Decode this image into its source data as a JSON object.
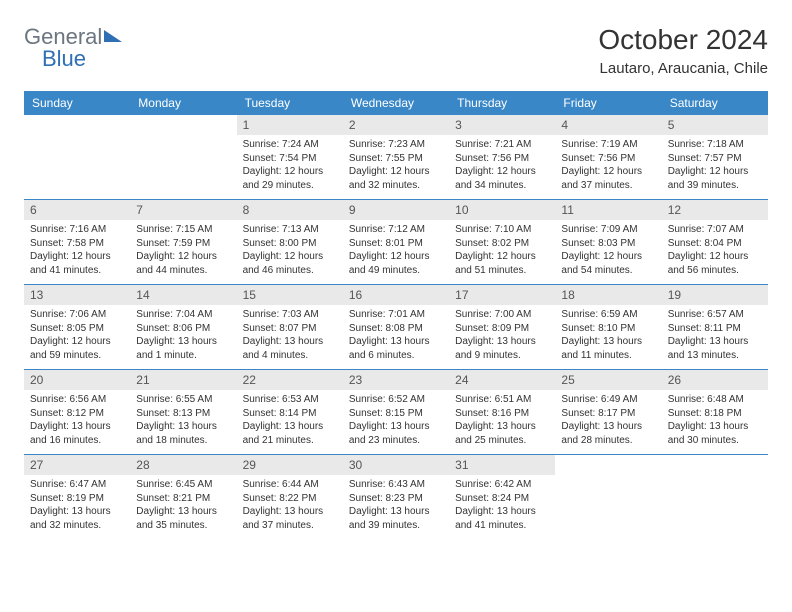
{
  "logo": {
    "part1": "General",
    "part2": "Blue"
  },
  "title": "October 2024",
  "location": "Lautaro, Araucania, Chile",
  "colors": {
    "headerBar": "#3a87c8",
    "dayNumBg": "#e9e9e9",
    "logoGray": "#6c7680",
    "logoBlue": "#2f6fb4"
  },
  "dayNames": [
    "Sunday",
    "Monday",
    "Tuesday",
    "Wednesday",
    "Thursday",
    "Friday",
    "Saturday"
  ],
  "startWeekday": 2,
  "daysInMonth": 31,
  "days": {
    "1": {
      "sunrise": "7:24 AM",
      "sunset": "7:54 PM",
      "daylight": "12 hours and 29 minutes."
    },
    "2": {
      "sunrise": "7:23 AM",
      "sunset": "7:55 PM",
      "daylight": "12 hours and 32 minutes."
    },
    "3": {
      "sunrise": "7:21 AM",
      "sunset": "7:56 PM",
      "daylight": "12 hours and 34 minutes."
    },
    "4": {
      "sunrise": "7:19 AM",
      "sunset": "7:56 PM",
      "daylight": "12 hours and 37 minutes."
    },
    "5": {
      "sunrise": "7:18 AM",
      "sunset": "7:57 PM",
      "daylight": "12 hours and 39 minutes."
    },
    "6": {
      "sunrise": "7:16 AM",
      "sunset": "7:58 PM",
      "daylight": "12 hours and 41 minutes."
    },
    "7": {
      "sunrise": "7:15 AM",
      "sunset": "7:59 PM",
      "daylight": "12 hours and 44 minutes."
    },
    "8": {
      "sunrise": "7:13 AM",
      "sunset": "8:00 PM",
      "daylight": "12 hours and 46 minutes."
    },
    "9": {
      "sunrise": "7:12 AM",
      "sunset": "8:01 PM",
      "daylight": "12 hours and 49 minutes."
    },
    "10": {
      "sunrise": "7:10 AM",
      "sunset": "8:02 PM",
      "daylight": "12 hours and 51 minutes."
    },
    "11": {
      "sunrise": "7:09 AM",
      "sunset": "8:03 PM",
      "daylight": "12 hours and 54 minutes."
    },
    "12": {
      "sunrise": "7:07 AM",
      "sunset": "8:04 PM",
      "daylight": "12 hours and 56 minutes."
    },
    "13": {
      "sunrise": "7:06 AM",
      "sunset": "8:05 PM",
      "daylight": "12 hours and 59 minutes."
    },
    "14": {
      "sunrise": "7:04 AM",
      "sunset": "8:06 PM",
      "daylight": "13 hours and 1 minute."
    },
    "15": {
      "sunrise": "7:03 AM",
      "sunset": "8:07 PM",
      "daylight": "13 hours and 4 minutes."
    },
    "16": {
      "sunrise": "7:01 AM",
      "sunset": "8:08 PM",
      "daylight": "13 hours and 6 minutes."
    },
    "17": {
      "sunrise": "7:00 AM",
      "sunset": "8:09 PM",
      "daylight": "13 hours and 9 minutes."
    },
    "18": {
      "sunrise": "6:59 AM",
      "sunset": "8:10 PM",
      "daylight": "13 hours and 11 minutes."
    },
    "19": {
      "sunrise": "6:57 AM",
      "sunset": "8:11 PM",
      "daylight": "13 hours and 13 minutes."
    },
    "20": {
      "sunrise": "6:56 AM",
      "sunset": "8:12 PM",
      "daylight": "13 hours and 16 minutes."
    },
    "21": {
      "sunrise": "6:55 AM",
      "sunset": "8:13 PM",
      "daylight": "13 hours and 18 minutes."
    },
    "22": {
      "sunrise": "6:53 AM",
      "sunset": "8:14 PM",
      "daylight": "13 hours and 21 minutes."
    },
    "23": {
      "sunrise": "6:52 AM",
      "sunset": "8:15 PM",
      "daylight": "13 hours and 23 minutes."
    },
    "24": {
      "sunrise": "6:51 AM",
      "sunset": "8:16 PM",
      "daylight": "13 hours and 25 minutes."
    },
    "25": {
      "sunrise": "6:49 AM",
      "sunset": "8:17 PM",
      "daylight": "13 hours and 28 minutes."
    },
    "26": {
      "sunrise": "6:48 AM",
      "sunset": "8:18 PM",
      "daylight": "13 hours and 30 minutes."
    },
    "27": {
      "sunrise": "6:47 AM",
      "sunset": "8:19 PM",
      "daylight": "13 hours and 32 minutes."
    },
    "28": {
      "sunrise": "6:45 AM",
      "sunset": "8:21 PM",
      "daylight": "13 hours and 35 minutes."
    },
    "29": {
      "sunrise": "6:44 AM",
      "sunset": "8:22 PM",
      "daylight": "13 hours and 37 minutes."
    },
    "30": {
      "sunrise": "6:43 AM",
      "sunset": "8:23 PM",
      "daylight": "13 hours and 39 minutes."
    },
    "31": {
      "sunrise": "6:42 AM",
      "sunset": "8:24 PM",
      "daylight": "13 hours and 41 minutes."
    }
  },
  "labels": {
    "sunrise": "Sunrise: ",
    "sunset": "Sunset: ",
    "daylight": "Daylight: "
  }
}
